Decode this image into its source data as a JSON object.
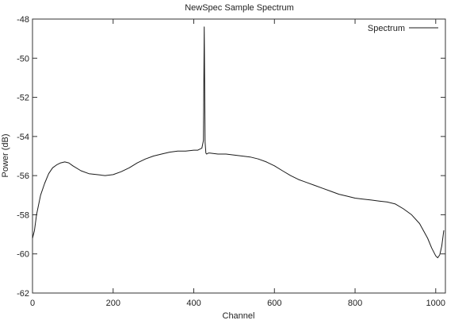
{
  "chart_data": {
    "type": "line",
    "title": "NewSpec Sample Spectrum",
    "xlabel": "Channel",
    "ylabel": "Power (dB)",
    "xlim": [
      0,
      1024
    ],
    "ylim": [
      -62,
      -48
    ],
    "xticks": [
      0,
      200,
      400,
      600,
      800,
      1000
    ],
    "yticks": [
      -62,
      -60,
      -58,
      -56,
      -54,
      -52,
      -50,
      -48
    ],
    "grid": false,
    "legend_position": "top-right",
    "series": [
      {
        "name": "Spectrum",
        "color": "#1a1a1a",
        "x": [
          0,
          5,
          10,
          20,
          30,
          40,
          50,
          60,
          70,
          80,
          90,
          100,
          120,
          140,
          160,
          180,
          200,
          220,
          240,
          260,
          280,
          300,
          320,
          340,
          360,
          380,
          400,
          410,
          420,
          424,
          426,
          428,
          430,
          432,
          436,
          440,
          460,
          480,
          500,
          520,
          540,
          560,
          580,
          600,
          620,
          640,
          660,
          680,
          700,
          720,
          740,
          760,
          780,
          800,
          820,
          840,
          860,
          880,
          900,
          920,
          940,
          960,
          980,
          990,
          1000,
          1005,
          1010,
          1015,
          1020
        ],
        "y": [
          -59.2,
          -58.8,
          -58.0,
          -57.0,
          -56.4,
          -55.9,
          -55.6,
          -55.45,
          -55.35,
          -55.3,
          -55.35,
          -55.5,
          -55.75,
          -55.9,
          -55.95,
          -56.0,
          -55.95,
          -55.8,
          -55.6,
          -55.35,
          -55.15,
          -55.0,
          -54.9,
          -54.8,
          -54.75,
          -54.75,
          -54.7,
          -54.7,
          -54.6,
          -54.2,
          -48.4,
          -54.3,
          -54.85,
          -54.9,
          -54.85,
          -54.85,
          -54.9,
          -54.9,
          -54.95,
          -55.0,
          -55.05,
          -55.15,
          -55.3,
          -55.5,
          -55.75,
          -56.0,
          -56.2,
          -56.35,
          -56.5,
          -56.65,
          -56.8,
          -56.95,
          -57.05,
          -57.15,
          -57.2,
          -57.25,
          -57.3,
          -57.35,
          -57.45,
          -57.7,
          -58.0,
          -58.45,
          -59.2,
          -59.7,
          -60.1,
          -60.2,
          -60.05,
          -59.6,
          -58.8
        ]
      }
    ]
  }
}
